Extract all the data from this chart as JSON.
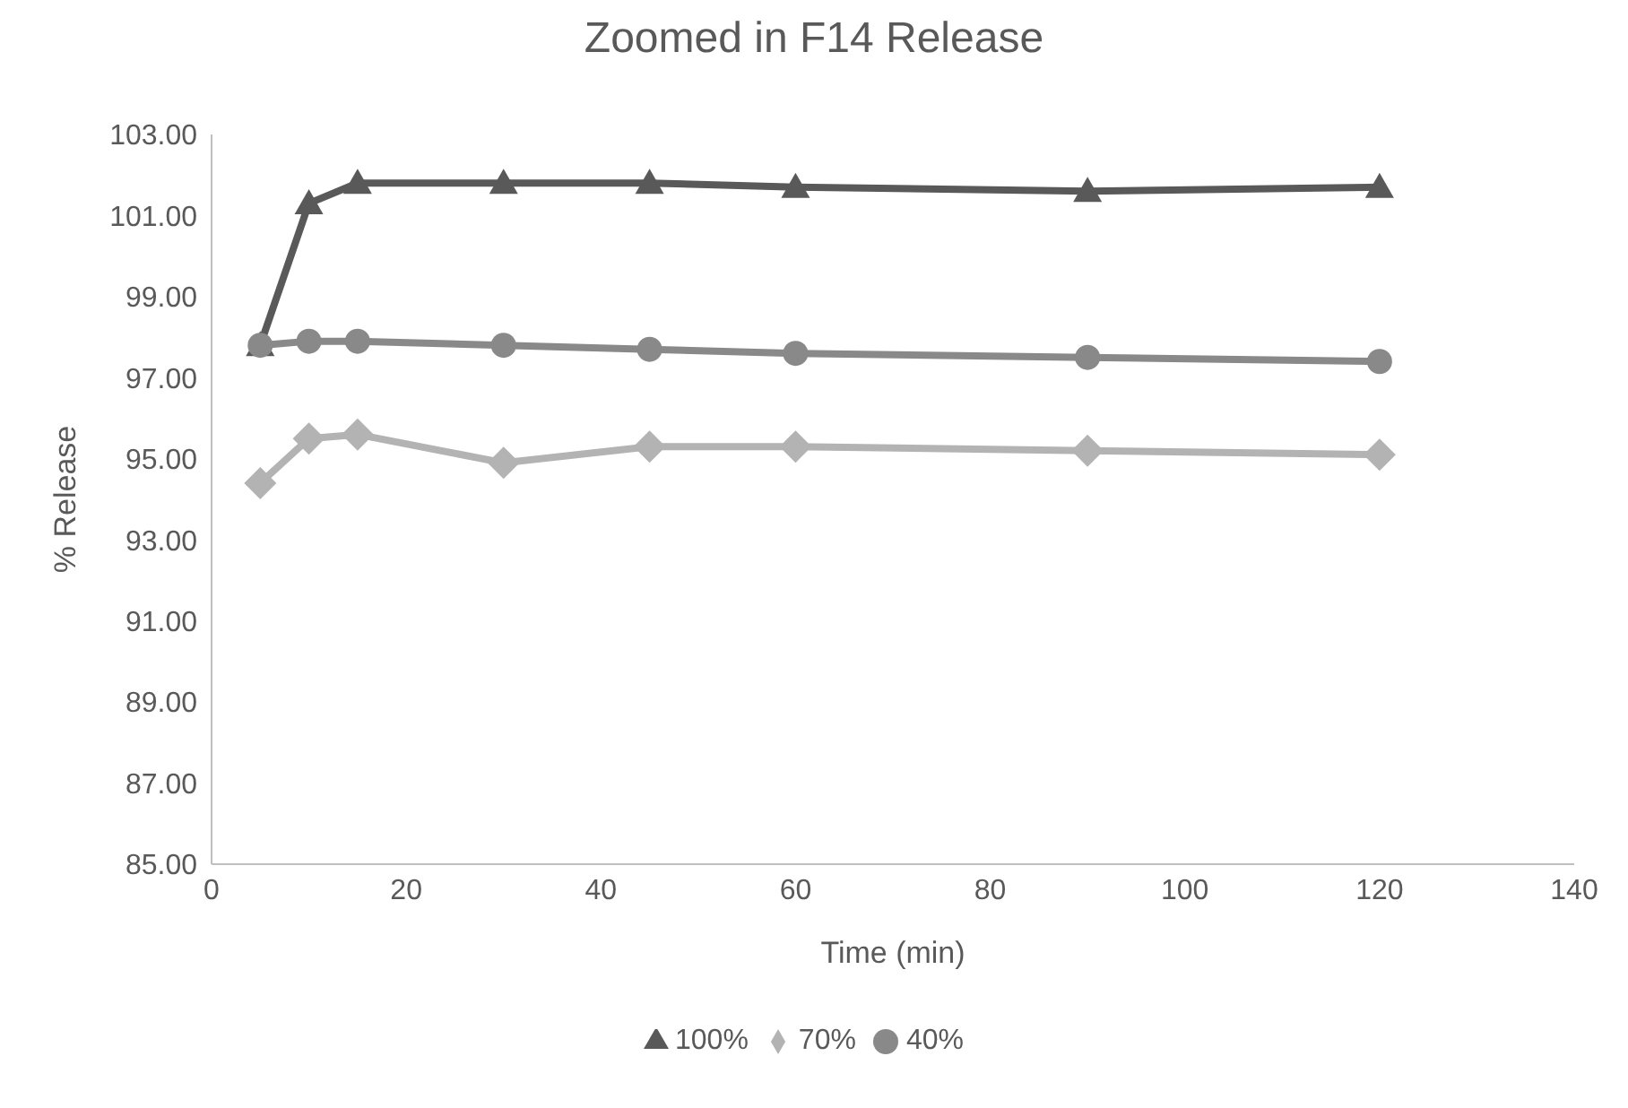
{
  "chart_data": {
    "type": "line",
    "title": "Zoomed in F14 Release",
    "xlabel": "Time (min)",
    "ylabel": "% Release",
    "xlim": [
      0,
      140
    ],
    "xticks": [
      0,
      20,
      40,
      60,
      80,
      100,
      120,
      140
    ],
    "ylim": [
      85,
      103
    ],
    "yticks": [
      {
        "value": 85,
        "label": "85.00"
      },
      {
        "value": 87,
        "label": "87.00"
      },
      {
        "value": 89,
        "label": "89.00"
      },
      {
        "value": 91,
        "label": "91.00"
      },
      {
        "value": 93,
        "label": "93.00"
      },
      {
        "value": 95,
        "label": "95.00"
      },
      {
        "value": 97,
        "label": "97.00"
      },
      {
        "value": 99,
        "label": "99.00"
      },
      {
        "value": 101,
        "label": "101.00"
      },
      {
        "value": 103,
        "label": "103.00"
      }
    ],
    "legend": "bottom",
    "series": [
      {
        "name": "100%",
        "color": "#595959",
        "marker": "triangle",
        "x": [
          5,
          10,
          15,
          30,
          45,
          60,
          90,
          120
        ],
        "values": [
          97.8,
          101.3,
          101.8,
          101.8,
          101.8,
          101.7,
          101.6,
          101.7
        ]
      },
      {
        "name": "70%",
        "color": "#b3b3b3",
        "marker": "diamond",
        "x": [
          5,
          10,
          15,
          30,
          45,
          60,
          90,
          120
        ],
        "values": [
          94.4,
          95.5,
          95.6,
          94.9,
          95.3,
          95.3,
          95.2,
          95.1
        ]
      },
      {
        "name": "40%",
        "color": "#898989",
        "marker": "circle",
        "x": [
          5,
          10,
          15,
          30,
          45,
          60,
          90,
          120
        ],
        "values": [
          97.8,
          97.9,
          97.9,
          97.8,
          97.7,
          97.6,
          97.5,
          97.4
        ]
      }
    ]
  }
}
